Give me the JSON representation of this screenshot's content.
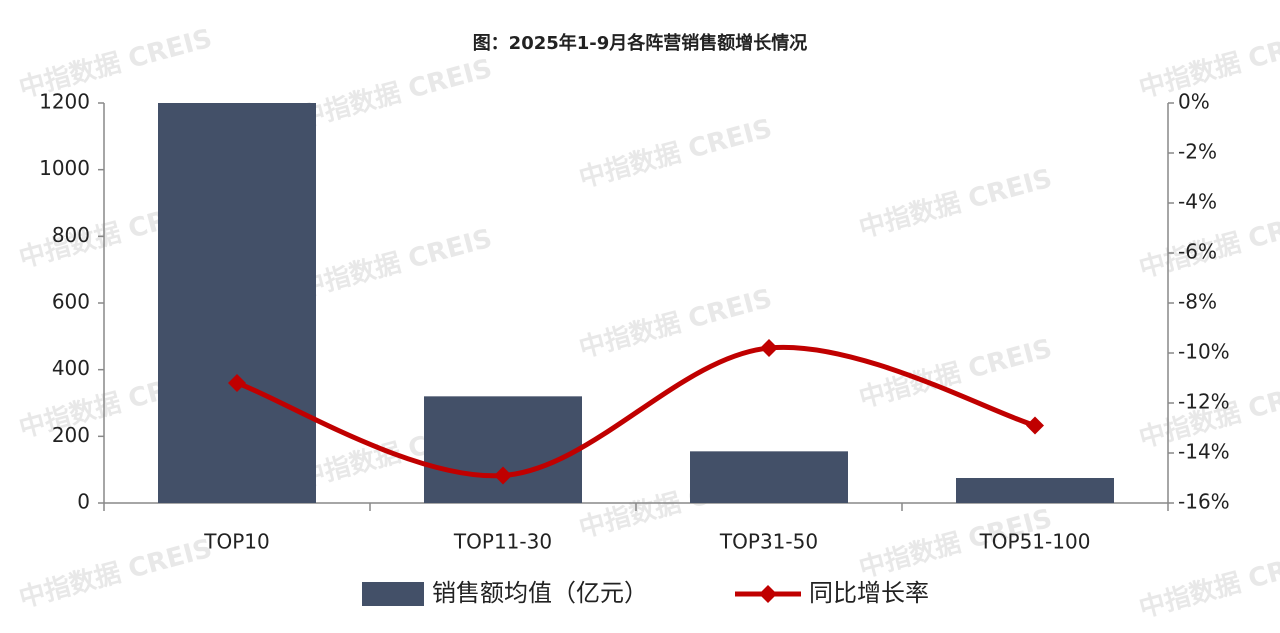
{
  "chart_data": {
    "type": "bar-line",
    "title": "图：2025年1-9月各阵营销售额增长情况",
    "watermark": "中指数据 CREIS",
    "categories": [
      "TOP10",
      "TOP11-30",
      "TOP31-50",
      "TOP51-100"
    ],
    "series": [
      {
        "name": "销售额均值（亿元）",
        "type": "bar",
        "color": "#435068",
        "values": [
          1200,
          320,
          155,
          75
        ]
      },
      {
        "name": "同比增长率",
        "type": "line",
        "color": "#c00000",
        "axis": "y2",
        "smooth": true,
        "values": [
          -11.2,
          -14.9,
          -9.8,
          -12.9
        ]
      }
    ],
    "ylim": [
      0,
      1200
    ],
    "yticks": [
      0,
      200,
      400,
      600,
      800,
      1000,
      1200
    ],
    "y2lim": [
      -16,
      0
    ],
    "y2ticks": [
      {
        "value": 0,
        "label": "0%"
      },
      {
        "value": -2,
        "label": "-2%"
      },
      {
        "value": -4,
        "label": "-4%"
      },
      {
        "value": -6,
        "label": "-6%"
      },
      {
        "value": -8,
        "label": "-8%"
      },
      {
        "value": -10,
        "label": "-10%"
      },
      {
        "value": -12,
        "label": "-12%"
      },
      {
        "value": -14,
        "label": "-14%"
      },
      {
        "value": -16,
        "label": "-16%"
      }
    ],
    "grid": false,
    "legend": "bottom"
  }
}
